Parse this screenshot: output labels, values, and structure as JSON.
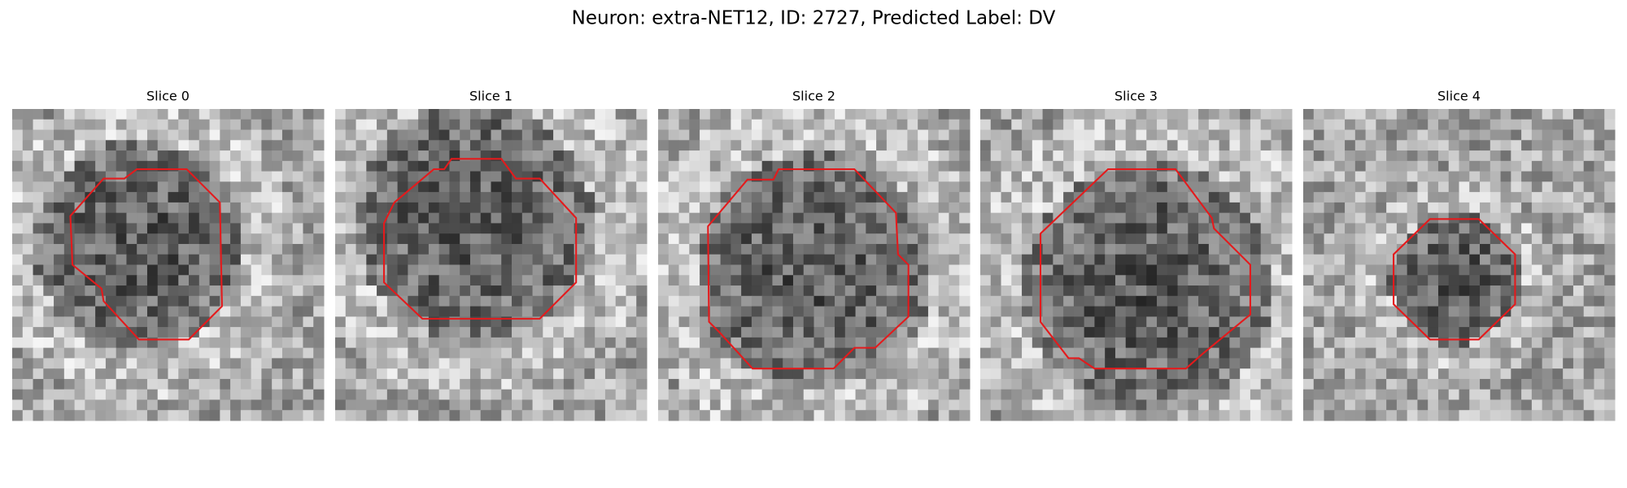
{
  "figure": {
    "title": "Neuron: extra-NET12, ID: 2727, Predicted Label: DV",
    "panels": [
      {
        "label": "Slice 0"
      },
      {
        "label": "Slice 1"
      },
      {
        "label": "Slice 2"
      },
      {
        "label": "Slice 3"
      },
      {
        "label": "Slice 4"
      }
    ]
  }
}
